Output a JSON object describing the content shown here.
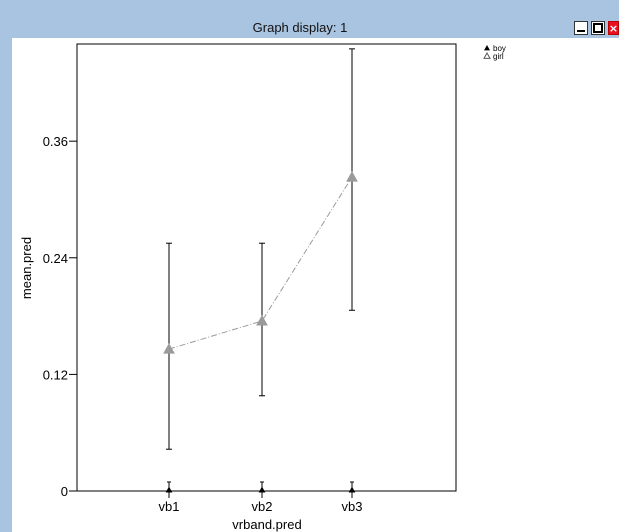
{
  "window": {
    "title": "Graph display: 1",
    "controls": {
      "minimize_icon": "minimize-icon",
      "maximize_icon": "maximize-icon",
      "close_icon": "close-icon",
      "close_glyph": "×"
    }
  },
  "colors": {
    "titlebar": "#a9c4e0",
    "close": "#e81123",
    "series_line": "#9a9a9a",
    "marker": "#9a9a9a"
  },
  "chart_data": {
    "type": "line",
    "title": "",
    "xlabel": "vrband.pred",
    "ylabel": "mean.pred",
    "categories": [
      "vb1",
      "vb2",
      "vb3"
    ],
    "ylim": [
      0,
      0.46
    ],
    "yticks": [
      0,
      0.12,
      0.24,
      0.36
    ],
    "ytick_labels": [
      "0",
      "0.12",
      "0.24",
      "0.36"
    ],
    "legend": {
      "placement": "top-right",
      "entries": [
        "boy",
        "girl"
      ]
    },
    "series": [
      {
        "name": "boy",
        "values": [
          0,
          0,
          0
        ],
        "ci_low": [
          0,
          0,
          0
        ],
        "ci_high": [
          0,
          0,
          0
        ],
        "marker": "filled-triangle"
      },
      {
        "name": "girl",
        "values": [
          0.146,
          0.175,
          0.323
        ],
        "ci_low": [
          0.043,
          0.098,
          0.186
        ],
        "ci_high": [
          0.255,
          0.255,
          0.455
        ],
        "marker": "open-triangle",
        "line_style": "dash-dot"
      }
    ]
  }
}
